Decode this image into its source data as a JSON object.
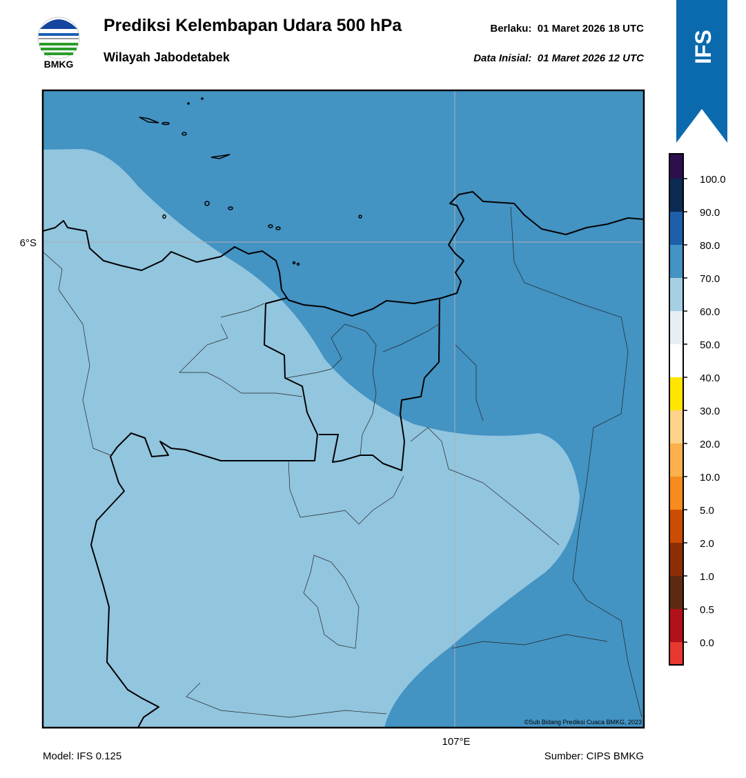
{
  "header": {
    "logo_text": "BMKG",
    "title": "Prediksi Kelembapan Udara 500 hPa",
    "subtitle": "Wilayah Jabodetabek",
    "valid_label": "Berlaku:",
    "valid_time": "01 Maret 2026 18 UTC",
    "init_label": "Data Inisial:",
    "init_time": "01 Maret 2026 12 UTC"
  },
  "badge": "IFS",
  "map": {
    "lat_label": "6°S",
    "lon_label": "107°E",
    "credit": "©Sub Bidang Prediksi Cuaca BMKG, 2023"
  },
  "colorbar": {
    "colors": [
      "#e8382f",
      "#b2101a",
      "#5c2a12",
      "#8c2d04",
      "#cc4c02",
      "#f78b1e",
      "#fdb04b",
      "#fed28a",
      "#ffe500",
      "#ffffff",
      "#e6eff6",
      "#a6cfe4",
      "#4393c3",
      "#1d5fa8",
      "#0b2a54",
      "#2d0f4e"
    ],
    "ticks": [
      "0.0",
      "0.5",
      "1.0",
      "2.0",
      "5.0",
      "10.0",
      "20.0",
      "30.0",
      "40.0",
      "50.0",
      "60.0",
      "70.0",
      "80.0",
      "90.0",
      "100.0"
    ]
  },
  "footer": {
    "model": "Model: IFS 0.125",
    "source": "Sumber: CIPS BMKG"
  }
}
